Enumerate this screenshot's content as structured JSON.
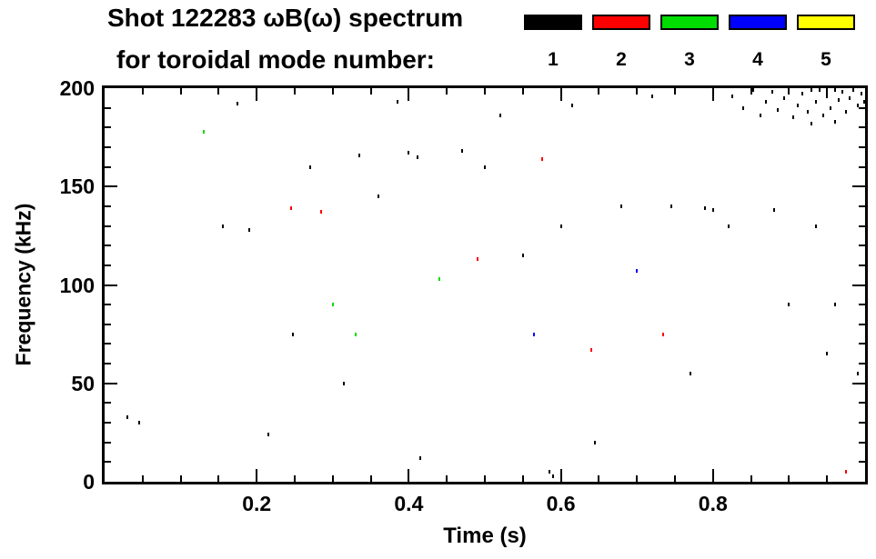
{
  "header": {
    "title": "Shot 122283 ωB(ω) spectrum",
    "subtitle": "for toroidal mode number:"
  },
  "chart_data": {
    "type": "scatter",
    "title": "Shot 122283 ωB(ω) spectrum",
    "subtitle": "for toroidal mode number:",
    "xlabel": "Time (s)",
    "ylabel": "Frequency (kHz)",
    "xlim": [
      0,
      1.0
    ],
    "ylim": [
      0,
      200
    ],
    "xticks": [
      0.2,
      0.4,
      0.6,
      0.8
    ],
    "yticks": [
      0,
      50,
      100,
      150,
      200
    ],
    "grid": false,
    "legend_position": "top-right",
    "legend": {
      "entries": [
        {
          "label": "1",
          "color": "#000000"
        },
        {
          "label": "2",
          "color": "#ff0000"
        },
        {
          "label": "3",
          "color": "#00dd00"
        },
        {
          "label": "4",
          "color": "#0000ff"
        },
        {
          "label": "5",
          "color": "#ffff00"
        }
      ]
    },
    "mode_colors": {
      "1": "#000000",
      "2": "#ff0000",
      "3": "#00dd00",
      "4": "#0000ff",
      "5": "#ffff00"
    },
    "points_format": "[time_s, frequency_kHz, toroidal_mode_number]",
    "points": [
      [
        0.03,
        33,
        1
      ],
      [
        0.045,
        30,
        1
      ],
      [
        0.13,
        178,
        3
      ],
      [
        0.155,
        130,
        1
      ],
      [
        0.175,
        192,
        1
      ],
      [
        0.19,
        128,
        1
      ],
      [
        0.215,
        24,
        1
      ],
      [
        0.245,
        139,
        2
      ],
      [
        0.248,
        75,
        1
      ],
      [
        0.27,
        160,
        1
      ],
      [
        0.285,
        137,
        2
      ],
      [
        0.3,
        90,
        3
      ],
      [
        0.315,
        50,
        1
      ],
      [
        0.33,
        75,
        3
      ],
      [
        0.335,
        166,
        1
      ],
      [
        0.36,
        145,
        1
      ],
      [
        0.385,
        193,
        1
      ],
      [
        0.4,
        167,
        1
      ],
      [
        0.412,
        165,
        1
      ],
      [
        0.415,
        12,
        1
      ],
      [
        0.44,
        103,
        3
      ],
      [
        0.47,
        168,
        1
      ],
      [
        0.49,
        113,
        2
      ],
      [
        0.5,
        160,
        1
      ],
      [
        0.52,
        186,
        1
      ],
      [
        0.55,
        115,
        1
      ],
      [
        0.565,
        75,
        4
      ],
      [
        0.575,
        164,
        2
      ],
      [
        0.585,
        5,
        1
      ],
      [
        0.59,
        3,
        1
      ],
      [
        0.6,
        130,
        1
      ],
      [
        0.615,
        191,
        1
      ],
      [
        0.64,
        67,
        2
      ],
      [
        0.645,
        20,
        1
      ],
      [
        0.68,
        140,
        1
      ],
      [
        0.7,
        107,
        4
      ],
      [
        0.72,
        196,
        1
      ],
      [
        0.735,
        75,
        2
      ],
      [
        0.745,
        140,
        1
      ],
      [
        0.77,
        55,
        1
      ],
      [
        0.79,
        139,
        1
      ],
      [
        0.8,
        138,
        1
      ],
      [
        0.82,
        130,
        1
      ],
      [
        0.88,
        138,
        1
      ],
      [
        0.9,
        90,
        1
      ],
      [
        0.935,
        130,
        1
      ],
      [
        0.95,
        65,
        1
      ],
      [
        0.96,
        90,
        1
      ],
      [
        0.975,
        5,
        2
      ],
      [
        0.99,
        55,
        1
      ],
      [
        0.825,
        196,
        1
      ],
      [
        0.84,
        190,
        1
      ],
      [
        0.853,
        199,
        1
      ],
      [
        0.862,
        186,
        1
      ],
      [
        0.87,
        193,
        1
      ],
      [
        0.878,
        198,
        1
      ],
      [
        0.885,
        189,
        1
      ],
      [
        0.893,
        195,
        1
      ],
      [
        0.9,
        200,
        1
      ],
      [
        0.905,
        185,
        1
      ],
      [
        0.912,
        191,
        1
      ],
      [
        0.918,
        197,
        1
      ],
      [
        0.925,
        188,
        1
      ],
      [
        0.93,
        199,
        1
      ],
      [
        0.935,
        193,
        1
      ],
      [
        0.94,
        200,
        1
      ],
      [
        0.945,
        186,
        1
      ],
      [
        0.95,
        196,
        1
      ],
      [
        0.955,
        190,
        1
      ],
      [
        0.96,
        200,
        1
      ],
      [
        0.965,
        194,
        1
      ],
      [
        0.97,
        198,
        1
      ],
      [
        0.975,
        188,
        1
      ],
      [
        0.98,
        195,
        1
      ],
      [
        0.985,
        199,
        1
      ],
      [
        0.99,
        191,
        1
      ],
      [
        0.995,
        197,
        1
      ],
      [
        1.0,
        193,
        1
      ],
      [
        0.96,
        183,
        1
      ],
      [
        0.93,
        182,
        1
      ]
    ]
  }
}
